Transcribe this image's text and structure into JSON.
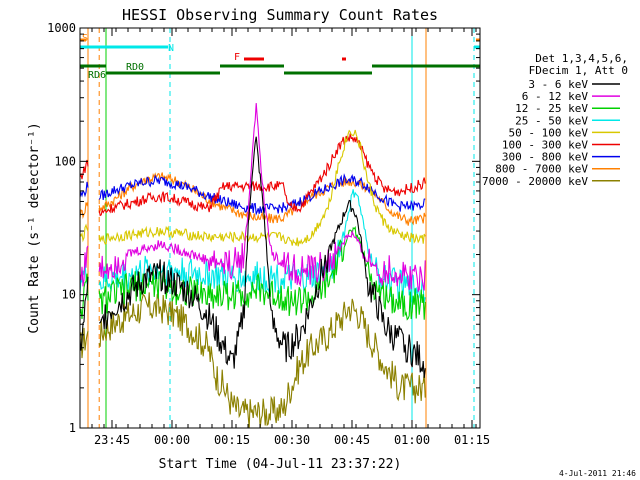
{
  "chart_data": {
    "type": "line",
    "title": "HESSI Observing Summary Count Rates",
    "xlabel": "Start Time (04-Jul-11 23:37:22)",
    "ylabel": "Count Rate (s⁻¹ detector⁻¹)",
    "x_unit": "minutes after 23:37:22",
    "xlim": [
      0,
      100
    ],
    "ylim": [
      1,
      1000
    ],
    "yscale": "log",
    "grid": false,
    "legend_position": "right",
    "x_ticks": [
      {
        "x": 8,
        "label": "23:45"
      },
      {
        "x": 23,
        "label": "00:00"
      },
      {
        "x": 38,
        "label": "00:15"
      },
      {
        "x": 53,
        "label": "00:30"
      },
      {
        "x": 68,
        "label": "00:45"
      },
      {
        "x": 83,
        "label": "01:00"
      },
      {
        "x": 98,
        "label": "01:15"
      }
    ],
    "y_ticks": [
      {
        "y": 1,
        "label": "1"
      },
      {
        "y": 10,
        "label": "10"
      },
      {
        "y": 100,
        "label": "100"
      },
      {
        "y": 1000,
        "label": "1000"
      }
    ],
    "legend_header": [
      "Det 1,3,4,5,6,",
      "FDecim 1, Att 0"
    ],
    "gaps": [
      [
        2,
        4.8
      ],
      [
        86.5,
        101
      ]
    ],
    "series": [
      {
        "name": "3 - 6 keV",
        "color": "#000000",
        "x": [
          0,
          1,
          1.8,
          5,
          6,
          8,
          12,
          16,
          20,
          24,
          28,
          32,
          36,
          38,
          40,
          41,
          42,
          43,
          44,
          46,
          48,
          51,
          52,
          55,
          58,
          62,
          64,
          66,
          67,
          68,
          69,
          70,
          72,
          74,
          76,
          78,
          80,
          82,
          84,
          86.5
        ],
        "y": [
          4,
          6,
          12,
          5,
          7,
          8,
          10,
          13,
          14,
          12,
          10,
          7,
          4,
          3,
          5,
          8,
          30,
          80,
          150,
          40,
          6,
          4,
          4,
          5,
          9,
          20,
          28,
          40,
          48,
          45,
          40,
          28,
          12,
          9,
          6,
          5,
          4.5,
          4,
          3.5,
          3
        ]
      },
      {
        "name": "6 - 12 keV",
        "color": "#e000e0",
        "x": [
          0,
          1,
          1.8,
          5,
          6,
          8,
          12,
          16,
          20,
          24,
          28,
          32,
          36,
          38,
          40,
          41,
          42,
          43,
          44,
          46,
          48,
          51,
          52,
          55,
          58,
          62,
          64,
          66,
          67,
          68,
          69,
          70,
          72,
          74,
          76,
          78,
          80,
          82,
          84,
          86.5
        ],
        "y": [
          14,
          15,
          22,
          15,
          16,
          17,
          20,
          22,
          24,
          22,
          20,
          18,
          17,
          17,
          18,
          21,
          40,
          110,
          260,
          50,
          20,
          17,
          16,
          15,
          15,
          17,
          20,
          25,
          28,
          28,
          26,
          22,
          18,
          16,
          15,
          15,
          14,
          14,
          14,
          14
        ]
      },
      {
        "name": "12 - 25 keV",
        "color": "#00d000",
        "x": [
          0,
          1,
          1.8,
          5,
          6,
          8,
          12,
          16,
          20,
          24,
          28,
          32,
          36,
          38,
          40,
          44,
          48,
          51,
          52,
          55,
          58,
          62,
          64,
          66,
          67,
          68,
          69,
          70,
          72,
          74,
          76,
          78,
          80,
          82,
          84,
          86.5
        ],
        "y": [
          8,
          9,
          12,
          8.5,
          9,
          10,
          11,
          12,
          12,
          11,
          10.5,
          10,
          10,
          10,
          10,
          11,
          10,
          10,
          9,
          9,
          9.5,
          12,
          16,
          24,
          28,
          30,
          29,
          25,
          15,
          11,
          10,
          9.5,
          9,
          8.5,
          8.5,
          8.5
        ]
      },
      {
        "name": "25 - 50 keV",
        "color": "#00e8e8",
        "x": [
          0,
          1,
          1.8,
          5,
          6,
          8,
          12,
          16,
          20,
          24,
          28,
          32,
          36,
          38,
          40,
          44,
          48,
          51,
          52,
          55,
          58,
          62,
          64,
          66,
          67,
          68,
          69,
          70,
          72,
          74,
          76,
          78,
          80,
          82,
          84,
          86.5
        ],
        "y": [
          13,
          13.5,
          15,
          12,
          12.5,
          13,
          14,
          15,
          15.5,
          15,
          14.5,
          14,
          13.5,
          13.5,
          13.5,
          13.5,
          13.5,
          13.5,
          13,
          13,
          13.5,
          15,
          19,
          28,
          40,
          55,
          60,
          45,
          22,
          15,
          13,
          12.5,
          12,
          11.5,
          11.5,
          11.5
        ]
      },
      {
        "name": "50 - 100 keV",
        "color": "#d8c800",
        "x": [
          0,
          1,
          1.8,
          5,
          6,
          8,
          12,
          16,
          20,
          24,
          28,
          32,
          36,
          38,
          40,
          44,
          48,
          51,
          52,
          55,
          58,
          62,
          64,
          66,
          67,
          68,
          69,
          70,
          72,
          74,
          76,
          78,
          80,
          82,
          84,
          86.5
        ],
        "y": [
          27,
          28,
          32,
          25,
          26,
          27,
          28,
          29,
          30,
          29,
          28,
          27,
          27,
          27,
          27,
          27,
          27,
          27,
          25,
          25,
          28,
          45,
          80,
          130,
          160,
          170,
          160,
          130,
          70,
          45,
          35,
          30,
          28,
          27,
          26,
          26
        ]
      },
      {
        "name": "100 - 300 keV",
        "color": "#ee0000",
        "x": [
          0,
          1,
          1.8,
          5,
          6,
          8,
          12,
          16,
          20,
          24,
          28,
          32,
          36,
          38,
          40,
          44,
          48,
          51,
          52,
          55,
          58,
          62,
          64,
          66,
          67,
          68,
          69,
          70,
          72,
          74,
          76,
          78,
          80,
          82,
          84,
          86.5
        ],
        "y": [
          75,
          85,
          100,
          40,
          42,
          45,
          48,
          52,
          55,
          52,
          48,
          44,
          65,
          65,
          65,
          65,
          65,
          65,
          45,
          45,
          60,
          90,
          120,
          145,
          150,
          150,
          145,
          130,
          95,
          75,
          62,
          60,
          60,
          62,
          65,
          70
        ]
      },
      {
        "name": "300 - 800 keV",
        "color": "#0000ee",
        "x": [
          0,
          1,
          1.8,
          5,
          6,
          8,
          12,
          16,
          20,
          24,
          28,
          32,
          36,
          38,
          40,
          44,
          48,
          51,
          52,
          55,
          58,
          62,
          64,
          66,
          67,
          68,
          69,
          70,
          72,
          74,
          76,
          78,
          80,
          82,
          84,
          86.5
        ],
        "y": [
          55,
          58,
          65,
          55,
          56,
          60,
          65,
          70,
          72,
          68,
          62,
          55,
          50,
          48,
          46,
          44,
          44,
          45,
          45,
          50,
          56,
          63,
          68,
          72,
          72,
          72,
          71,
          70,
          65,
          58,
          52,
          48,
          46,
          46,
          46,
          48
        ]
      },
      {
        "name": "800 - 7000 keV",
        "color": "#ff8000",
        "x": [
          0,
          1,
          1.8,
          5,
          6,
          8,
          12,
          16,
          20,
          24,
          28,
          32,
          36,
          38,
          40,
          44,
          48,
          51,
          52,
          55,
          58,
          62,
          64,
          66,
          67,
          68,
          69,
          70,
          72,
          74,
          76,
          78,
          80,
          82,
          84,
          86.5
        ],
        "y": [
          40,
          42,
          50,
          45,
          46,
          50,
          62,
          73,
          77,
          72,
          62,
          52,
          45,
          43,
          41,
          38,
          37,
          38,
          40,
          47,
          55,
          63,
          68,
          70,
          71,
          71,
          70,
          68,
          63,
          56,
          48,
          42,
          38,
          36,
          36,
          38
        ]
      },
      {
        "name": "7000 - 20000 keV",
        "color": "#8b8000",
        "x": [
          0,
          1,
          1.8,
          5,
          6,
          8,
          12,
          16,
          20,
          24,
          28,
          32,
          34,
          36,
          38,
          40,
          44,
          48,
          51,
          52,
          55,
          58,
          62,
          64,
          66,
          67,
          68,
          69,
          70,
          72,
          74,
          76,
          78,
          80,
          82,
          84,
          86.5
        ],
        "y": [
          4,
          4.5,
          5,
          5,
          5.5,
          6,
          7,
          8,
          8,
          7,
          5.5,
          4,
          2.5,
          2,
          1.5,
          1.3,
          1.3,
          1.3,
          1.4,
          1.8,
          3,
          4,
          5,
          6,
          7,
          8,
          8,
          7.5,
          7,
          5,
          4,
          3,
          2.5,
          2,
          2,
          2,
          2
        ]
      }
    ],
    "mode_bars": [
      {
        "label": "S",
        "color": "#ff8000",
        "segments": [
          [
            0,
            1.5
          ]
        ]
      },
      {
        "label": "N",
        "color": "#00e8e8",
        "segments": [
          [
            0,
            22
          ]
        ]
      },
      {
        "label": "F",
        "color": "#ee0000",
        "segments": [
          [
            41,
            46
          ],
          [
            65.5,
            66.5
          ]
        ]
      },
      {
        "label": "RD0",
        "color": "#007000",
        "segments": [
          [
            0,
            6.5
          ],
          [
            35,
            51
          ]
        ]
      },
      {
        "label": "RD6",
        "color": "#007000",
        "segments": [
          [
            6.5,
            35
          ],
          [
            51,
            73
          ]
        ]
      }
    ],
    "annotations": [
      {
        "text": "S"
      },
      {
        "text": "N"
      },
      {
        "text": "F"
      },
      {
        "text": "RD0"
      },
      {
        "text": "RD6"
      }
    ],
    "footer": "4-Jul-2011 21:46"
  }
}
